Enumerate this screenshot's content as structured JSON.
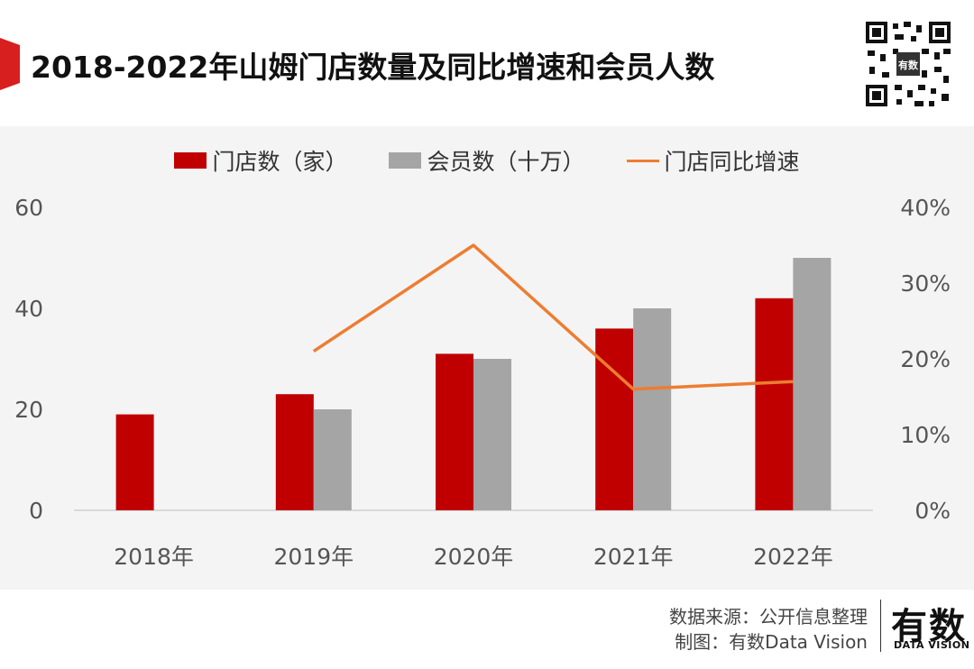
{
  "header": {
    "title": "2018-2022年山姆门店数量及同比增速和会员人数"
  },
  "colors": {
    "accent_red": "#c00000",
    "gray": "#a5a5a5",
    "orange": "#ed7d31"
  },
  "chart_data": {
    "type": "bar",
    "categories": [
      "2018年",
      "2019年",
      "2020年",
      "2021年",
      "2022年"
    ],
    "series": [
      {
        "name": "门店数（家）",
        "type": "bar",
        "axis": "left",
        "values": [
          19,
          23,
          31,
          36,
          42
        ]
      },
      {
        "name": "会员数（十万）",
        "type": "bar",
        "axis": "left",
        "values": [
          null,
          20,
          30,
          40,
          50
        ]
      },
      {
        "name": "门店同比增速",
        "type": "line",
        "axis": "right",
        "values": [
          null,
          0.21,
          0.35,
          0.16,
          0.17
        ]
      }
    ],
    "y_left": {
      "ticks": [
        0,
        20,
        40,
        60
      ],
      "ylim": [
        0,
        60
      ]
    },
    "y_right": {
      "ticks": [
        "0%",
        "10%",
        "20%",
        "30%",
        "40%"
      ],
      "ylim": [
        0,
        0.4
      ]
    },
    "legend_position": "top",
    "grid": false
  },
  "footer": {
    "source": "数据来源：公开信息整理",
    "made_by": "制图：有数Data Vision",
    "logo_text": "有数",
    "logo_sub": "DATA VISION"
  }
}
